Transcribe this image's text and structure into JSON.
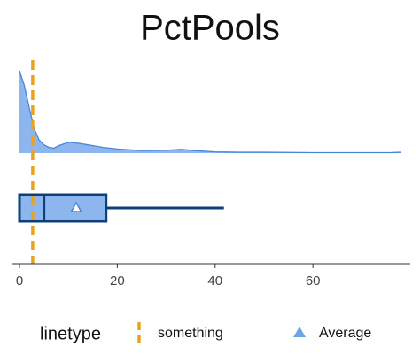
{
  "chart_data": {
    "type": "box-density",
    "title": "PctPools",
    "xlim": [
      -1.45,
      79.9
    ],
    "xticks": [
      0,
      20,
      40,
      60
    ],
    "density": {
      "color": "#8db6ef",
      "line_color": "#4a86d8",
      "ylim": [
        0,
        1
      ],
      "x": [
        0,
        1,
        2,
        3,
        4,
        5,
        6,
        7,
        8,
        10,
        12,
        14,
        17,
        20,
        25,
        30,
        33,
        36,
        40,
        45,
        50,
        60,
        70,
        76,
        78
      ],
      "y": [
        1,
        0.82,
        0.55,
        0.3,
        0.16,
        0.1,
        0.07,
        0.06,
        0.09,
        0.13,
        0.12,
        0.1,
        0.07,
        0.05,
        0.03,
        0.035,
        0.045,
        0.03,
        0.015,
        0.01,
        0.01,
        0.005,
        0.005,
        0.006,
        0.01
      ]
    },
    "box": {
      "fill": "#8db6ef",
      "stroke": "#0d3f7a",
      "min": 0,
      "q1": 0,
      "median": 5,
      "q3": 17.7,
      "max": 41.8,
      "mean": 11.6
    },
    "reference_line": {
      "value": 2.7,
      "color": "#e8a21f"
    },
    "legend": {
      "title": "linetype",
      "items": [
        {
          "label": "something",
          "color": "#e8a21f"
        },
        {
          "label": "Average",
          "color": "#6aa5e8"
        }
      ]
    }
  }
}
